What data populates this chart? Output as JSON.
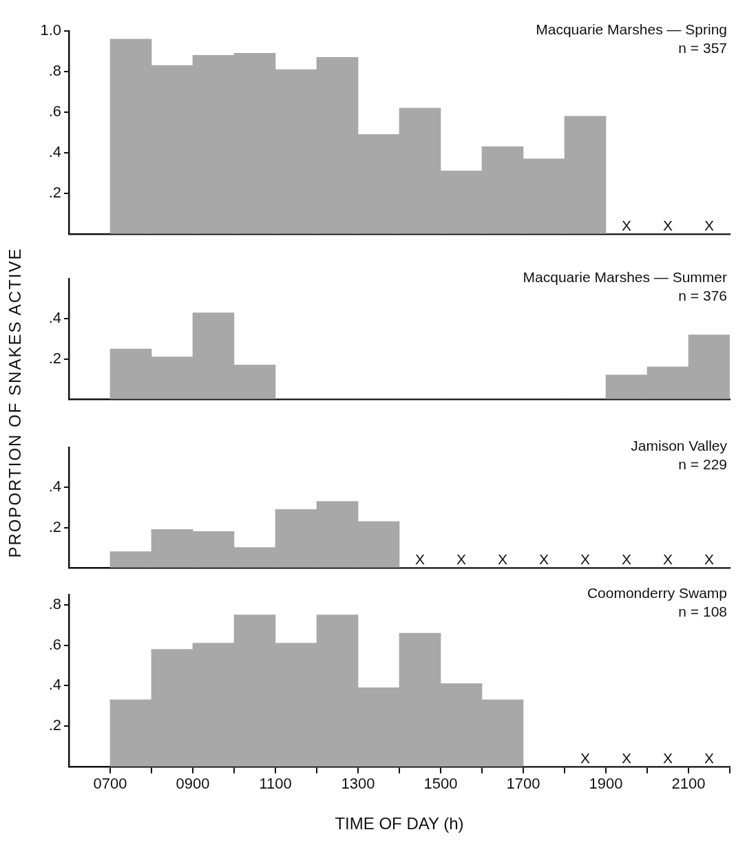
{
  "chart_data": [
    {
      "type": "histogram",
      "title": "Macquarie Marshes — Spring",
      "subtitle": "n = 357",
      "ylabel": "PROPORTION OF SNAKES ACTIVE",
      "bins": [
        700,
        800,
        900,
        1000,
        1100,
        1200,
        1300,
        1400,
        1500,
        1600,
        1700,
        1800,
        1900,
        2000,
        2100,
        2200
      ],
      "values": [
        0.96,
        0.83,
        0.88,
        0.89,
        0.81,
        0.87,
        0.49,
        0.62,
        0.31,
        0.43,
        0.37,
        0.58,
        0,
        0,
        0
      ],
      "color": "#a8a8a8",
      "xlim": [
        600,
        2200
      ],
      "ylim": [
        0,
        1.0
      ],
      "yticks": [
        {
          "value": 0.2,
          "label": ".2"
        },
        {
          "value": 0.4,
          "label": ".4"
        },
        {
          "value": 0.6,
          "label": ".6"
        },
        {
          "value": 0.8,
          "label": ".8"
        },
        {
          "value": 1.0,
          "label": "1.0"
        }
      ],
      "tick_labels": "y",
      "grid": false,
      "legend": false,
      "annotations": [
        "X",
        "X",
        "X"
      ]
    },
    {
      "type": "histogram",
      "title": "Macquarie Marshes — Summer",
      "subtitle": "n = 376",
      "bins": [
        700,
        800,
        900,
        1000,
        1100,
        1200,
        1300,
        1400,
        1500,
        1600,
        1700,
        1800,
        1900,
        2000,
        2100,
        2200
      ],
      "values": [
        0.25,
        0.21,
        0.43,
        0.17,
        0,
        0,
        0,
        0,
        0,
        0,
        0,
        0,
        0.12,
        0.16,
        0.32
      ],
      "color": "#a8a8a8",
      "xlim": [
        600,
        2200
      ],
      "ylim": [
        0,
        0.6
      ],
      "yticks": [
        {
          "value": 0.2,
          "label": ".2"
        },
        {
          "value": 0.4,
          "label": ".4"
        }
      ],
      "tick_labels": "y",
      "grid": false,
      "legend": false
    },
    {
      "type": "histogram",
      "title": "Jamison Valley",
      "subtitle": "n = 229",
      "bins": [
        700,
        800,
        900,
        1000,
        1100,
        1200,
        1300,
        1400,
        1500,
        1600,
        1700,
        1800,
        1900,
        2000,
        2100,
        2200
      ],
      "values": [
        0.08,
        0.19,
        0.18,
        0.1,
        0.29,
        0.33,
        0.23,
        0,
        0,
        0,
        0,
        0,
        0,
        0,
        0
      ],
      "color": "#a8a8a8",
      "xlim": [
        600,
        2200
      ],
      "ylim": [
        0,
        0.6
      ],
      "yticks": [
        {
          "value": 0.2,
          "label": ".2"
        },
        {
          "value": 0.4,
          "label": ".4"
        }
      ],
      "tick_labels": "y",
      "grid": false,
      "legend": false,
      "annotations": [
        "X",
        "X",
        "X",
        "X",
        "X",
        "X",
        "X",
        "X"
      ]
    },
    {
      "type": "histogram",
      "title": "Coomonderry Swamp",
      "subtitle": "n = 108",
      "xlabel": "TIME OF DAY (h)",
      "bins": [
        700,
        800,
        900,
        1000,
        1100,
        1200,
        1300,
        1400,
        1500,
        1600,
        1700,
        1800,
        1900,
        2000,
        2100,
        2200
      ],
      "values": [
        0.33,
        0.58,
        0.61,
        0.75,
        0.61,
        0.75,
        0.39,
        0.66,
        0.41,
        0.33,
        0,
        0,
        0,
        0,
        0
      ],
      "color": "#a8a8a8",
      "xlim": [
        600,
        2200
      ],
      "ylim": [
        0,
        0.85
      ],
      "xticks": [
        {
          "value": 700,
          "label": "0700"
        },
        {
          "value": 800,
          "label": null
        },
        {
          "value": 900,
          "label": "0900"
        },
        {
          "value": 1000,
          "label": null
        },
        1100,
        {
          "value": 1200,
          "label": null
        },
        1300,
        {
          "value": 1400,
          "label": null
        },
        1500,
        {
          "value": 1600,
          "label": null
        },
        1700,
        {
          "value": 1800,
          "label": null
        },
        1900,
        {
          "value": 2000,
          "label": null
        },
        2100,
        {
          "value": 2200,
          "label": null
        }
      ],
      "yticks": [
        {
          "value": 0.2,
          "label": ".2"
        },
        {
          "value": 0.4,
          "label": ".4"
        },
        {
          "value": 0.6,
          "label": ".6"
        },
        {
          "value": 0.8,
          "label": ".8"
        }
      ],
      "grid": false,
      "legend": false,
      "annotations": [
        "X",
        "X",
        "X",
        "X"
      ]
    }
  ]
}
